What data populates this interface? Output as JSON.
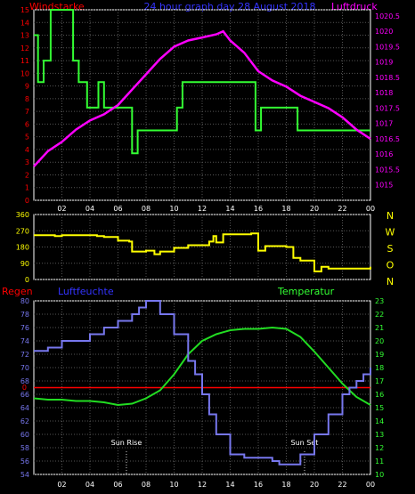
{
  "colors": {
    "background": "#000000",
    "frame": "#ffffff",
    "grid": "#555555",
    "red": "#ff0000",
    "blue": "#3333ff",
    "magenta": "#ff00ff",
    "green": "#33ff33",
    "yellow": "#ffff00",
    "humidity": "#7777ee",
    "temperature": "#22dd22",
    "pressure": "#ff00ff",
    "wind_speed": "#33ff33",
    "wind_dir": "#ffff00",
    "zero_line": "#ff0000"
  },
  "x_tick_labels": [
    "02",
    "04",
    "06",
    "08",
    "10",
    "12",
    "14",
    "16",
    "18",
    "20",
    "22",
    "00"
  ],
  "chart_data": [
    {
      "type": "line",
      "title": "24 hour graph day  28 August  2018",
      "left_label": "Windstarke",
      "right_label": "Luftdruck",
      "x_range": [
        0,
        24
      ],
      "y_left": {
        "min": 0,
        "max": 15,
        "ticks": [
          "0",
          "1",
          "2",
          "3",
          "4",
          "5",
          "6",
          "7",
          "8",
          "9",
          "10",
          "11",
          "12",
          "13",
          "14",
          "15"
        ]
      },
      "y_right": {
        "min": 1014.5,
        "max": 1020.7,
        "ticks": [
          "1015",
          "1015.5",
          "1016",
          "1016.5",
          "1017",
          "1017.5",
          "1018",
          "1018.5",
          "1019",
          "1019.5",
          "1020",
          "1020.5"
        ]
      },
      "series": [
        {
          "axis": "left",
          "step": true,
          "x": [
            0,
            0.3,
            0.7,
            1.2,
            1.6,
            2.8,
            3.2,
            3.8,
            4.6,
            5.0,
            5.3,
            5.6,
            6.2,
            7.0,
            7.4,
            8.6,
            9.0,
            10.2,
            10.6,
            15.8,
            16.2,
            18.6,
            18.8,
            19.2,
            19.6,
            22.8,
            24
          ],
          "y": [
            13,
            9.3,
            11,
            15,
            15,
            11,
            9.3,
            7.3,
            9.3,
            7.3,
            7.3,
            7.3,
            7.3,
            3.7,
            5.5,
            5.5,
            5.5,
            7.3,
            9.3,
            5.5,
            7.3,
            7.3,
            5.5,
            5.5,
            5.5,
            5.5,
            5.5
          ]
        },
        {
          "axis": "right",
          "x": [
            0,
            1,
            2,
            3,
            4,
            5,
            6,
            7,
            8,
            9,
            10,
            11,
            12,
            13,
            13.5,
            14,
            15,
            16,
            17,
            18,
            19,
            20,
            21,
            22,
            23,
            24
          ],
          "y": [
            1015.6,
            1016.1,
            1016.4,
            1016.8,
            1017.1,
            1017.3,
            1017.6,
            1018.1,
            1018.6,
            1019.1,
            1019.5,
            1019.7,
            1019.8,
            1019.9,
            1020.0,
            1019.7,
            1019.3,
            1018.7,
            1018.4,
            1018.2,
            1017.9,
            1017.7,
            1017.5,
            1017.2,
            1016.8,
            1016.5
          ]
        }
      ]
    },
    {
      "type": "line",
      "y_left": {
        "min": 0,
        "max": 360,
        "ticks": [
          "0",
          "90",
          "180",
          "270",
          "360"
        ]
      },
      "right_labels": [
        "N",
        "W",
        "S",
        "O",
        "N"
      ],
      "series": [
        {
          "step": true,
          "x": [
            0,
            1.5,
            2.0,
            4.5,
            5.0,
            6.0,
            6.8,
            7.0,
            8.0,
            8.6,
            9.0,
            10.0,
            11.0,
            12.5,
            12.8,
            13.0,
            13.5,
            15.5,
            16.0,
            16.5,
            17.0,
            18.0,
            18.5,
            19.0,
            20.0,
            20.5,
            21.0,
            22.5,
            24
          ],
          "y": [
            245,
            240,
            245,
            240,
            235,
            215,
            210,
            155,
            160,
            140,
            155,
            175,
            190,
            210,
            240,
            205,
            250,
            255,
            160,
            185,
            185,
            180,
            120,
            105,
            45,
            70,
            60,
            60,
            70
          ]
        }
      ]
    },
    {
      "type": "line",
      "left_label": "Regen",
      "humidity_label": "Luftfeuchte",
      "right_label": "Temperatur",
      "zero_label": "0",
      "events": [
        {
          "label": "Sun Rise",
          "x": 6.6
        },
        {
          "label": "Sun Set",
          "x": 19.3
        }
      ],
      "y_left": {
        "min": 54,
        "max": 80,
        "ticks": [
          "54",
          "56",
          "58",
          "60",
          "62",
          "64",
          "66",
          "68",
          "70",
          "72",
          "74",
          "76",
          "78",
          "80"
        ]
      },
      "y_right": {
        "min": 10,
        "max": 23,
        "ticks": [
          "10",
          "11",
          "12",
          "13",
          "14",
          "15",
          "16",
          "17",
          "18",
          "19",
          "20",
          "21",
          "22",
          "23"
        ]
      },
      "series": [
        {
          "axis": "left",
          "step": true,
          "x": [
            0,
            1,
            2,
            3,
            4,
            5,
            6,
            7,
            7.5,
            8,
            9,
            10,
            11,
            11.5,
            12,
            12.5,
            13,
            14,
            15,
            16,
            17,
            17.5,
            18,
            19,
            20,
            21,
            22,
            22.5,
            23,
            23.5,
            24
          ],
          "y": [
            72.5,
            73,
            74,
            74,
            75,
            76,
            77,
            78,
            79,
            80,
            78,
            75,
            71,
            69,
            66,
            63,
            60,
            57,
            56.5,
            56.5,
            56,
            55.5,
            55.5,
            57,
            60,
            63,
            66,
            67,
            68,
            69,
            70
          ]
        },
        {
          "axis": "right",
          "x": [
            0,
            1,
            2,
            3,
            4,
            5,
            6,
            7,
            8,
            9,
            10,
            11,
            12,
            13,
            14,
            15,
            16,
            17,
            18,
            19,
            20,
            21,
            22,
            23,
            24
          ],
          "y": [
            15.7,
            15.6,
            15.6,
            15.5,
            15.5,
            15.4,
            15.2,
            15.3,
            15.7,
            16.3,
            17.5,
            19.0,
            20.0,
            20.5,
            20.8,
            20.9,
            20.9,
            21.0,
            20.9,
            20.3,
            19.2,
            18.0,
            16.8,
            15.8,
            15.2
          ]
        },
        {
          "axis": "left",
          "x": [
            0,
            24
          ],
          "y": [
            67,
            67
          ]
        }
      ]
    }
  ]
}
